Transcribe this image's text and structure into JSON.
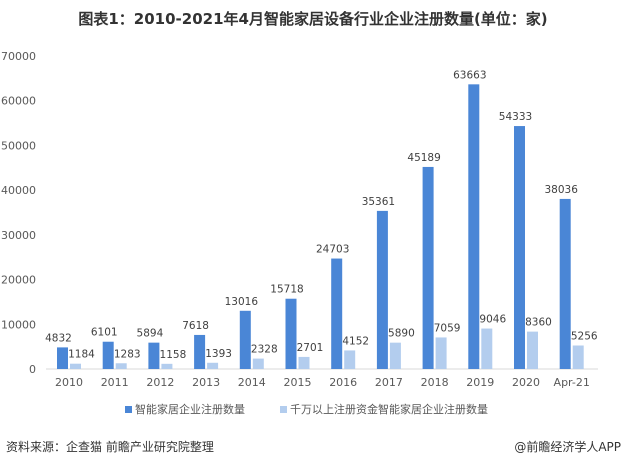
{
  "chart_data": {
    "type": "bar",
    "title": "图表1：2010-2021年4月智能家居设备行业企业注册数量(单位：家)",
    "categories": [
      "2010",
      "2011",
      "2012",
      "2013",
      "2014",
      "2015",
      "2016",
      "2017",
      "2018",
      "2019",
      "2020",
      "Apr-21"
    ],
    "series": [
      {
        "name": "智能家居企业注册数量",
        "color": "#4a86d6",
        "values": [
          4832,
          6101,
          5894,
          7618,
          13016,
          15718,
          24703,
          35361,
          45189,
          63663,
          54333,
          38036
        ]
      },
      {
        "name": "千万以上注册资金智能家居企业注册数量",
        "color": "#b3cdee",
        "values": [
          1184,
          1283,
          1158,
          1393,
          2328,
          2701,
          4152,
          5890,
          7059,
          9046,
          8360,
          5256
        ]
      }
    ],
    "yticks": [
      0,
      10000,
      20000,
      30000,
      40000,
      50000,
      60000,
      70000
    ],
    "ylim": [
      0,
      70000
    ],
    "xlabel": "",
    "ylabel": "",
    "legend_position": "bottom",
    "grid": false
  },
  "footer": {
    "source": "资料来源：企查猫 前瞻产业研究院整理",
    "credit": "@前瞻经济学人APP"
  }
}
